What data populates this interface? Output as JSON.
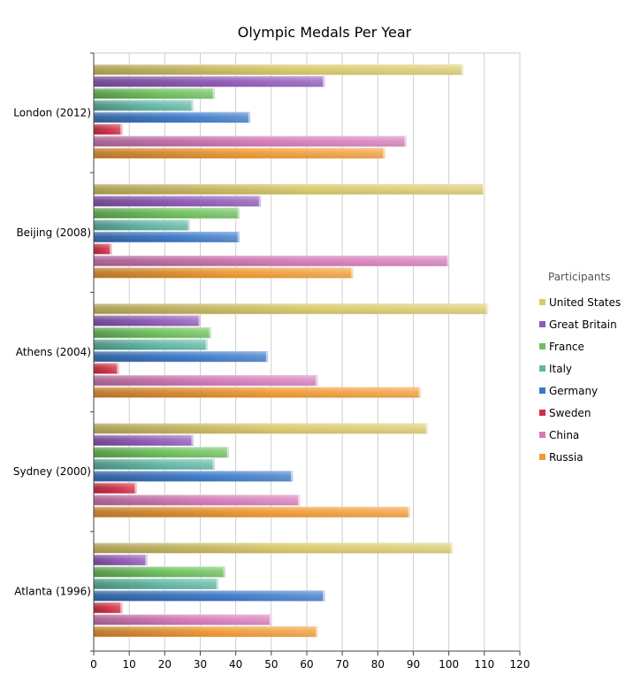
{
  "chart_data": {
    "type": "bar",
    "orientation": "horizontal",
    "title": "Olympic Medals Per Year",
    "categories": [
      "London (2012)",
      "Beijing (2008)",
      "Athens (2004)",
      "Sydney (2000)",
      "Atlanta (1996)"
    ],
    "xlim": [
      0,
      120
    ],
    "xticks": [
      0,
      10,
      20,
      30,
      40,
      50,
      60,
      70,
      80,
      90,
      100,
      110,
      120
    ],
    "grid": true,
    "legend": {
      "title": "Participants",
      "placement": "right"
    },
    "series": [
      {
        "name": "United States",
        "color": "#d9c96a",
        "values": [
          104,
          110,
          111,
          94,
          101
        ]
      },
      {
        "name": "Great Britain",
        "color": "#9058b8",
        "values": [
          65,
          47,
          30,
          28,
          15
        ]
      },
      {
        "name": "France",
        "color": "#6cc05a",
        "values": [
          34,
          41,
          33,
          38,
          37
        ]
      },
      {
        "name": "Italy",
        "color": "#5fb7a3",
        "values": [
          28,
          27,
          32,
          34,
          35
        ]
      },
      {
        "name": "Germany",
        "color": "#3a78c8",
        "values": [
          44,
          41,
          49,
          56,
          65
        ]
      },
      {
        "name": "Sweden",
        "color": "#d22f45",
        "values": [
          8,
          5,
          7,
          12,
          8
        ]
      },
      {
        "name": "China",
        "color": "#d57ab8",
        "values": [
          88,
          100,
          63,
          58,
          50
        ]
      },
      {
        "name": "Russia",
        "color": "#f19a33",
        "values": [
          82,
          73,
          92,
          89,
          63
        ]
      }
    ]
  }
}
